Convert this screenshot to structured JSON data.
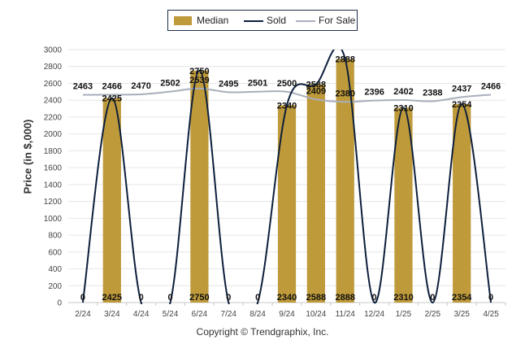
{
  "chart_data": {
    "type": "bar",
    "categories": [
      "2/24",
      "3/24",
      "4/24",
      "5/24",
      "6/24",
      "7/24",
      "8/24",
      "9/24",
      "10/24",
      "11/24",
      "12/24",
      "1/25",
      "2/25",
      "3/25",
      "4/25"
    ],
    "series": [
      {
        "name": "Median",
        "kind": "bar",
        "color": "#bf9a3a",
        "values": [
          0,
          2425,
          0,
          0,
          2750,
          0,
          0,
          2340,
          2588,
          2888,
          0,
          2310,
          0,
          2354,
          0
        ],
        "bottom_labels": [
          "",
          "2425",
          "",
          "",
          "2750",
          "",
          "",
          "2340",
          "2588",
          "2888",
          "",
          "2310",
          "",
          "2354",
          ""
        ]
      },
      {
        "name": "Sold",
        "kind": "line",
        "color": "#0d1f3c",
        "values": [
          0,
          2425,
          0,
          0,
          2750,
          0,
          0,
          2340,
          2588,
          2888,
          0,
          2310,
          0,
          2354,
          0
        ]
      },
      {
        "name": "For Sale",
        "kind": "line",
        "color": "#a8aebb",
        "values": [
          2463,
          2466,
          2470,
          2502,
          2539,
          2495,
          2501,
          2500,
          2409,
          2380,
          2396,
          2402,
          2388,
          2437,
          2466
        ]
      }
    ],
    "ylabel": "Price (in $,000)",
    "ylim": [
      0,
      3000
    ],
    "yticks": [
      0,
      200,
      400,
      600,
      800,
      1000,
      1200,
      1400,
      1600,
      1800,
      2000,
      2200,
      2400,
      2600,
      2800,
      3000
    ],
    "grid": true,
    "legend_position": "top-center"
  },
  "legend": {
    "median_label": "Median",
    "sold_label": "Sold",
    "for_sale_label": "For Sale"
  },
  "footer": {
    "copyright": "Copyright © Trendgraphix, Inc."
  }
}
